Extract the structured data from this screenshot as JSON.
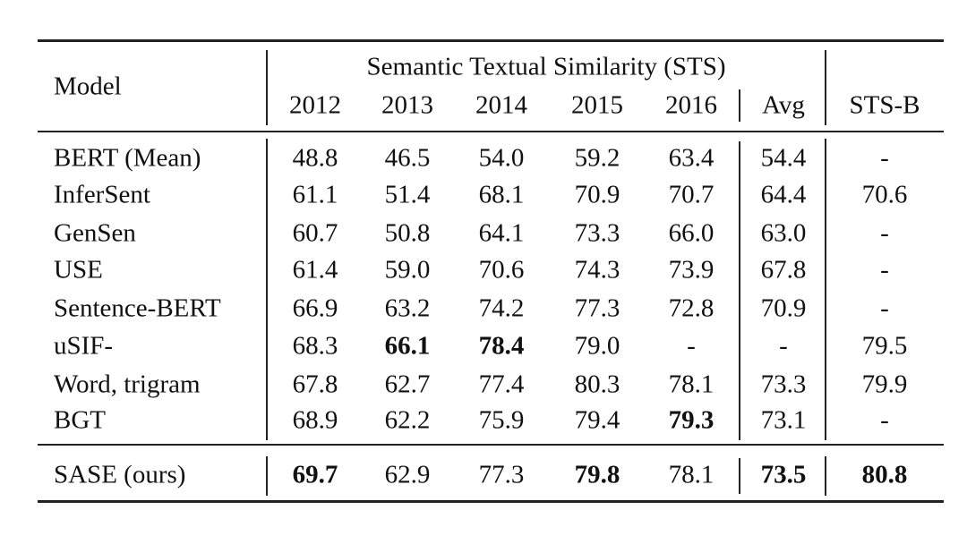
{
  "table": {
    "header": {
      "model": "Model",
      "group": "Semantic Textual Similarity (STS)",
      "columns": [
        "2012",
        "2013",
        "2014",
        "2015",
        "2016",
        "Avg",
        "STS-B"
      ]
    },
    "rows": [
      {
        "model": "BERT (Mean)",
        "cells": [
          "48.8",
          "46.5",
          "54.0",
          "59.2",
          "63.4",
          "54.4",
          "-"
        ],
        "bold": []
      },
      {
        "model": "InferSent",
        "cells": [
          "61.1",
          "51.4",
          "68.1",
          "70.9",
          "70.7",
          "64.4",
          "70.6"
        ],
        "bold": []
      },
      {
        "model": "GenSen",
        "cells": [
          "60.7",
          "50.8",
          "64.1",
          "73.3",
          "66.0",
          "63.0",
          "-"
        ],
        "bold": []
      },
      {
        "model": "USE",
        "cells": [
          "61.4",
          "59.0",
          "70.6",
          "74.3",
          "73.9",
          "67.8",
          "-"
        ],
        "bold": []
      },
      {
        "model": "Sentence-BERT",
        "cells": [
          "66.9",
          "63.2",
          "74.2",
          "77.3",
          "72.8",
          "70.9",
          "-"
        ],
        "bold": []
      },
      {
        "model": "uSIF-",
        "cells": [
          "68.3",
          "66.1",
          "78.4",
          "79.0",
          "-",
          "-",
          "79.5"
        ],
        "bold": [
          1,
          2
        ]
      },
      {
        "model": "Word, trigram",
        "cells": [
          "67.8",
          "62.7",
          "77.4",
          "80.3",
          "78.1",
          "73.3",
          "79.9"
        ],
        "bold": []
      },
      {
        "model": "BGT",
        "cells": [
          "68.9",
          "62.2",
          "75.9",
          "79.4",
          "79.3",
          "73.1",
          "-"
        ],
        "bold": [
          4
        ]
      },
      {
        "model": "SASE (ours)",
        "cells": [
          "69.7",
          "62.9",
          "77.3",
          "79.8",
          "78.1",
          "73.5",
          "80.8"
        ],
        "bold": [
          0,
          3,
          5,
          6
        ]
      }
    ]
  }
}
